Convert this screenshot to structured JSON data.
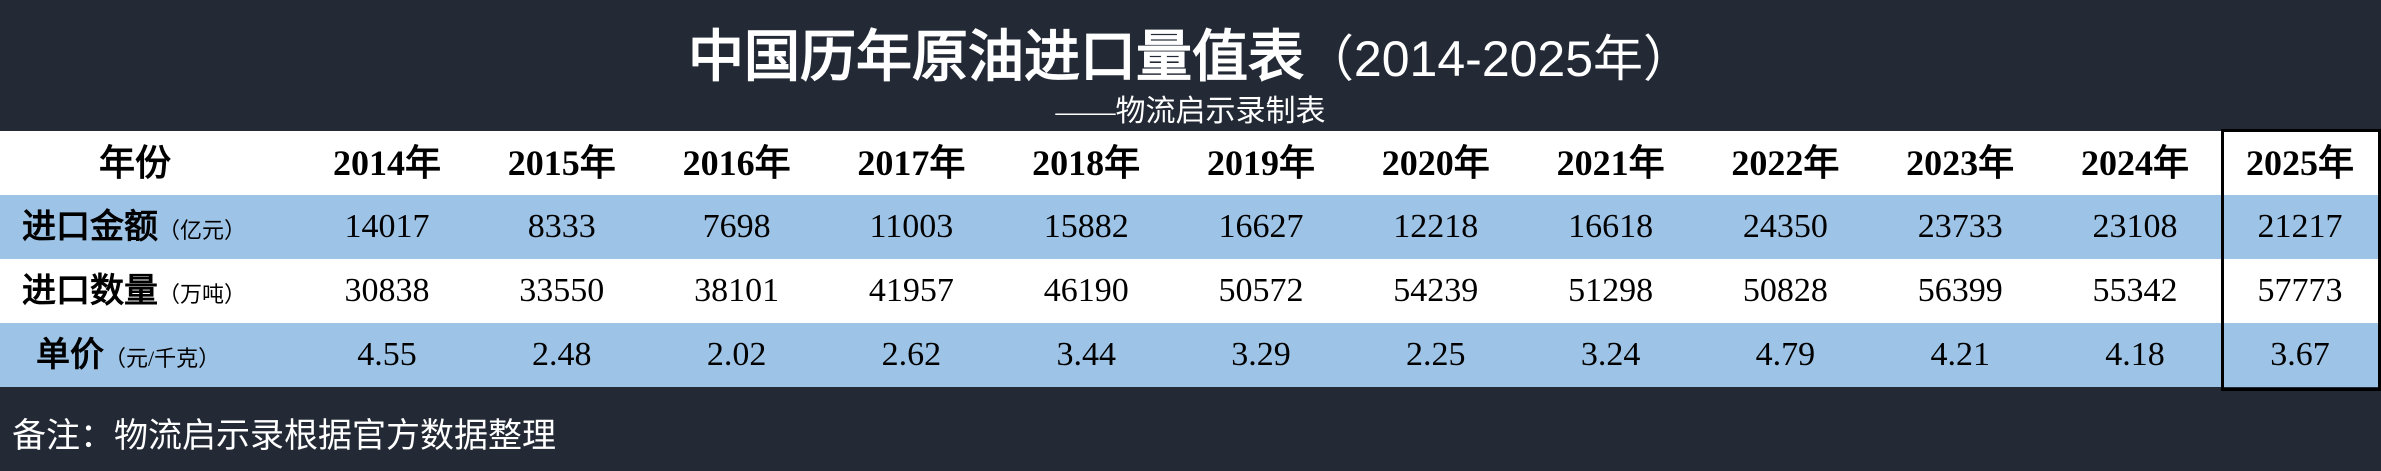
{
  "header": {
    "title": "中国历年原油进口量值表",
    "title_suffix": "（2014-2025年）",
    "subtitle": "——物流启示录制表"
  },
  "table": {
    "header_label": "年份",
    "columns": [
      "2014年",
      "2015年",
      "2016年",
      "2017年",
      "2018年",
      "2019年",
      "2020年",
      "2021年",
      "2022年",
      "2023年",
      "2024年",
      "2025年"
    ],
    "rows": [
      {
        "label": "进口金额",
        "unit": "（亿元）",
        "values": [
          14017,
          8333,
          7698,
          11003,
          15882,
          16627,
          12218,
          16618,
          24350,
          23733,
          23108,
          21217
        ]
      },
      {
        "label": "进口数量",
        "unit": "（万吨）",
        "values": [
          30838,
          33550,
          38101,
          41957,
          46190,
          50572,
          54239,
          51298,
          50828,
          56399,
          55342,
          57773
        ]
      },
      {
        "label": "单价",
        "unit": "（元/千克）",
        "values": [
          4.55,
          2.48,
          2.02,
          2.62,
          3.44,
          3.29,
          2.25,
          3.24,
          4.79,
          4.21,
          4.18,
          3.67
        ]
      }
    ]
  },
  "footer": {
    "note": "备注：物流启示录根据官方数据整理"
  }
}
